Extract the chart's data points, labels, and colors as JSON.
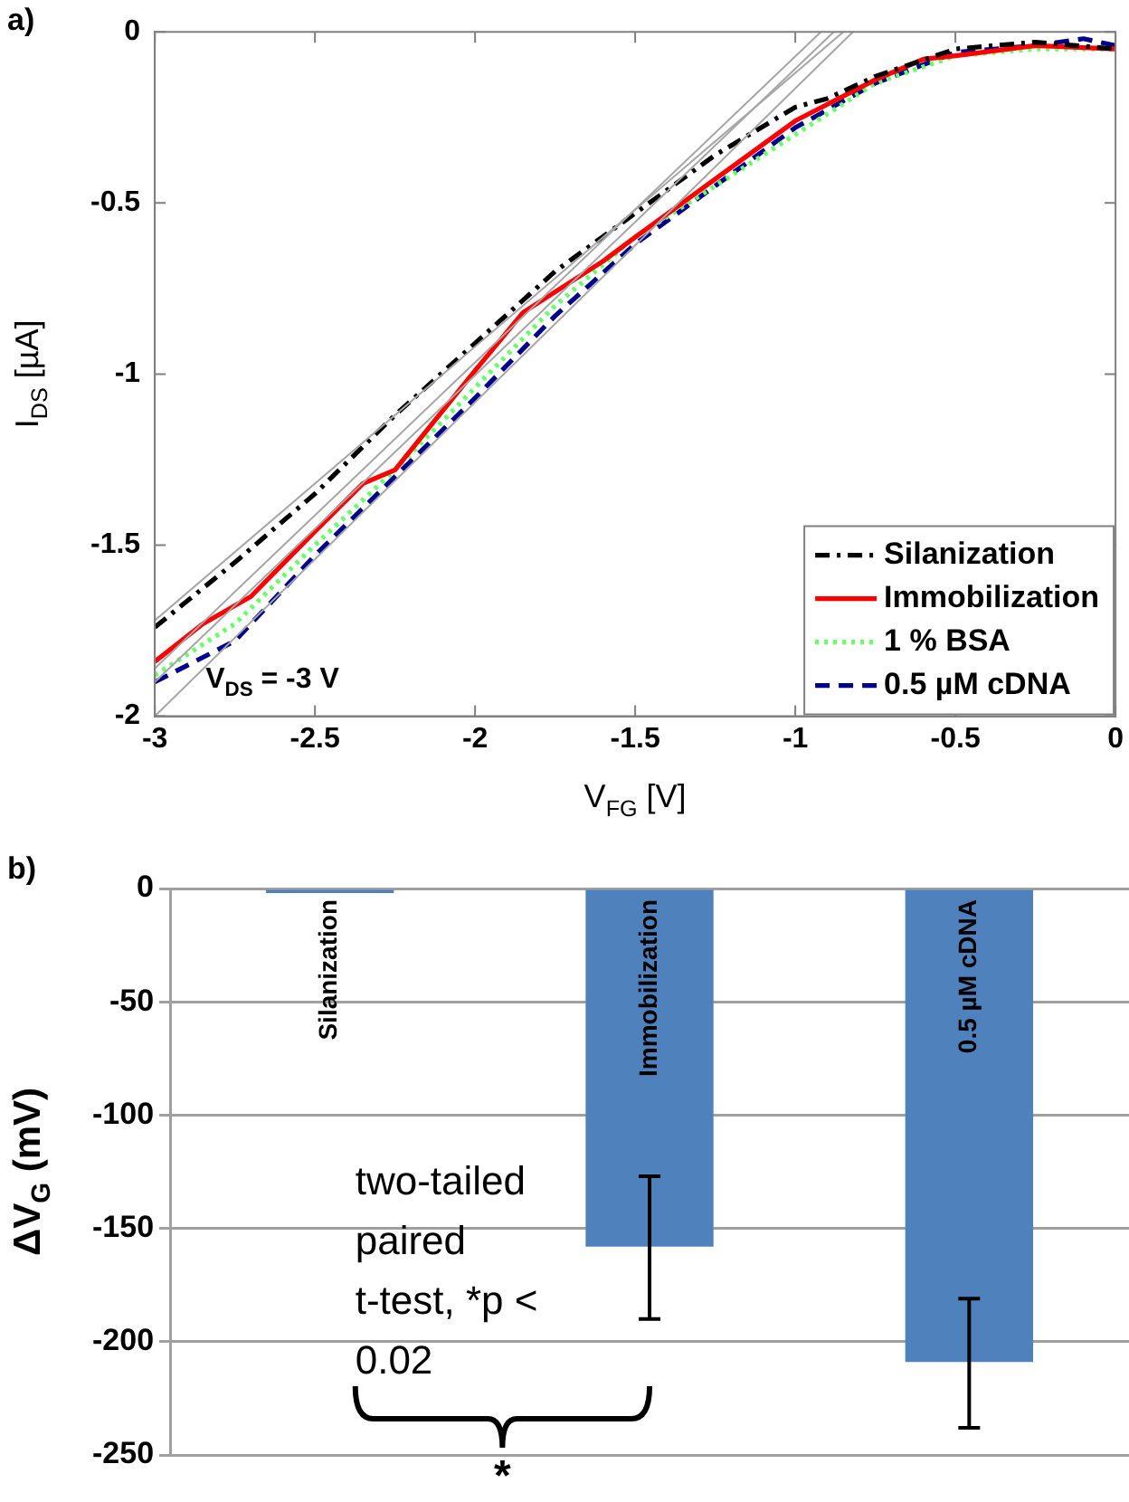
{
  "chart_data": [
    {
      "type": "line",
      "xlabel": "V$_{FG}$ [V]",
      "ylabel": "I$_{DS}$ [µA]",
      "xlim": [
        -3,
        0
      ],
      "ylim": [
        -2,
        0
      ],
      "xticks": [
        -3,
        -2.5,
        -2,
        -1.5,
        -1,
        -0.5,
        0
      ],
      "yticks": [
        -2,
        -1.5,
        -1,
        -0.5,
        0
      ],
      "grid": false,
      "legend": "bottom right",
      "annotations": [
        "a)",
        "V$_{DS}$ = -3 V"
      ],
      "series": [
        {
          "type": "line",
          "color": "#a6a6a6",
          "x": [
            -3,
            -0.85
          ],
          "values": [
            -1.72,
            0
          ]
        },
        {
          "type": "line",
          "color": "#a6a6a6",
          "x": [
            -3,
            -0.92
          ],
          "values": [
            -1.86,
            0
          ]
        },
        {
          "type": "line",
          "color": "#a6a6a6",
          "x": [
            -3,
            -0.88
          ],
          "values": [
            -1.9,
            0
          ]
        },
        {
          "type": "line",
          "color": "#a6a6a6",
          "x": [
            -3,
            -0.82
          ],
          "values": [
            -2,
            0
          ]
        },
        {
          "name": "Silanization",
          "color": "#000000",
          "line_style": "dashdot",
          "x": [
            -3,
            -2.75,
            -2.5,
            -2.25,
            -2,
            -1.75,
            -1.5,
            -1.25,
            -1,
            -0.9,
            -0.75,
            -0.5,
            -0.25,
            0
          ],
          "values": [
            -1.74,
            -1.55,
            -1.35,
            -1.12,
            -0.91,
            -0.7,
            -0.53,
            -0.36,
            -0.22,
            -0.195,
            -0.13,
            -0.05,
            -0.03,
            -0.05
          ]
        },
        {
          "name": "Immobilization",
          "color": "#ff0000",
          "line_style": "solid",
          "x": [
            -3,
            -2.85,
            -2.7,
            -2.5,
            -2.35,
            -2.25,
            -2,
            -1.85,
            -1.75,
            -1.6,
            -1.5,
            -1.25,
            -1,
            -0.75,
            -0.6,
            -0.5,
            -0.25,
            0
          ],
          "values": [
            -1.84,
            -1.73,
            -1.65,
            -1.46,
            -1.32,
            -1.28,
            -0.99,
            -0.82,
            -0.76,
            -0.67,
            -0.6,
            -0.43,
            -0.26,
            -0.14,
            -0.08,
            -0.07,
            -0.04,
            -0.05
          ]
        },
        {
          "name": "1 % BSA",
          "color": "#66ff66",
          "line_style": "dotted",
          "x": [
            -3,
            -2.75,
            -2.5,
            -2.25,
            -2,
            -1.75,
            -1.5,
            -1.25,
            -1,
            -0.75,
            -0.5,
            -0.25,
            0
          ],
          "values": [
            -1.88,
            -1.73,
            -1.5,
            -1.28,
            -1.04,
            -0.8,
            -0.6,
            -0.45,
            -0.3,
            -0.15,
            -0.07,
            -0.05,
            -0.05
          ]
        },
        {
          "name": "0.5 µM cDNA",
          "color": "#00008b",
          "line_style": "dashed",
          "x": [
            -3,
            -2.75,
            -2.5,
            -2.25,
            -2,
            -1.75,
            -1.5,
            -1.25,
            -1,
            -0.75,
            -0.5,
            -0.25,
            -0.1,
            0
          ],
          "values": [
            -1.9,
            -1.78,
            -1.53,
            -1.3,
            -1.07,
            -0.83,
            -0.62,
            -0.45,
            -0.28,
            -0.15,
            -0.06,
            -0.04,
            -0.02,
            -0.04
          ]
        }
      ]
    },
    {
      "type": "bar",
      "ylabel": "ΔV$_{G}$ (mV)",
      "categories": [
        "Silanization",
        "Immobilization",
        "0.5 µM cDNA"
      ],
      "values": [
        -2,
        -158,
        -209
      ],
      "errors": [
        null,
        [
          -190,
          -127
        ],
        [
          -238,
          -181
        ]
      ],
      "color": "#4f81bd",
      "ylim": [
        -250,
        0
      ],
      "yticks": [
        -250,
        -200,
        -150,
        -100,
        -50,
        0
      ],
      "grid": "y",
      "annotations": [
        "b)",
        "two-tailed paired t-test, *p < 0.02",
        "*"
      ]
    }
  ]
}
